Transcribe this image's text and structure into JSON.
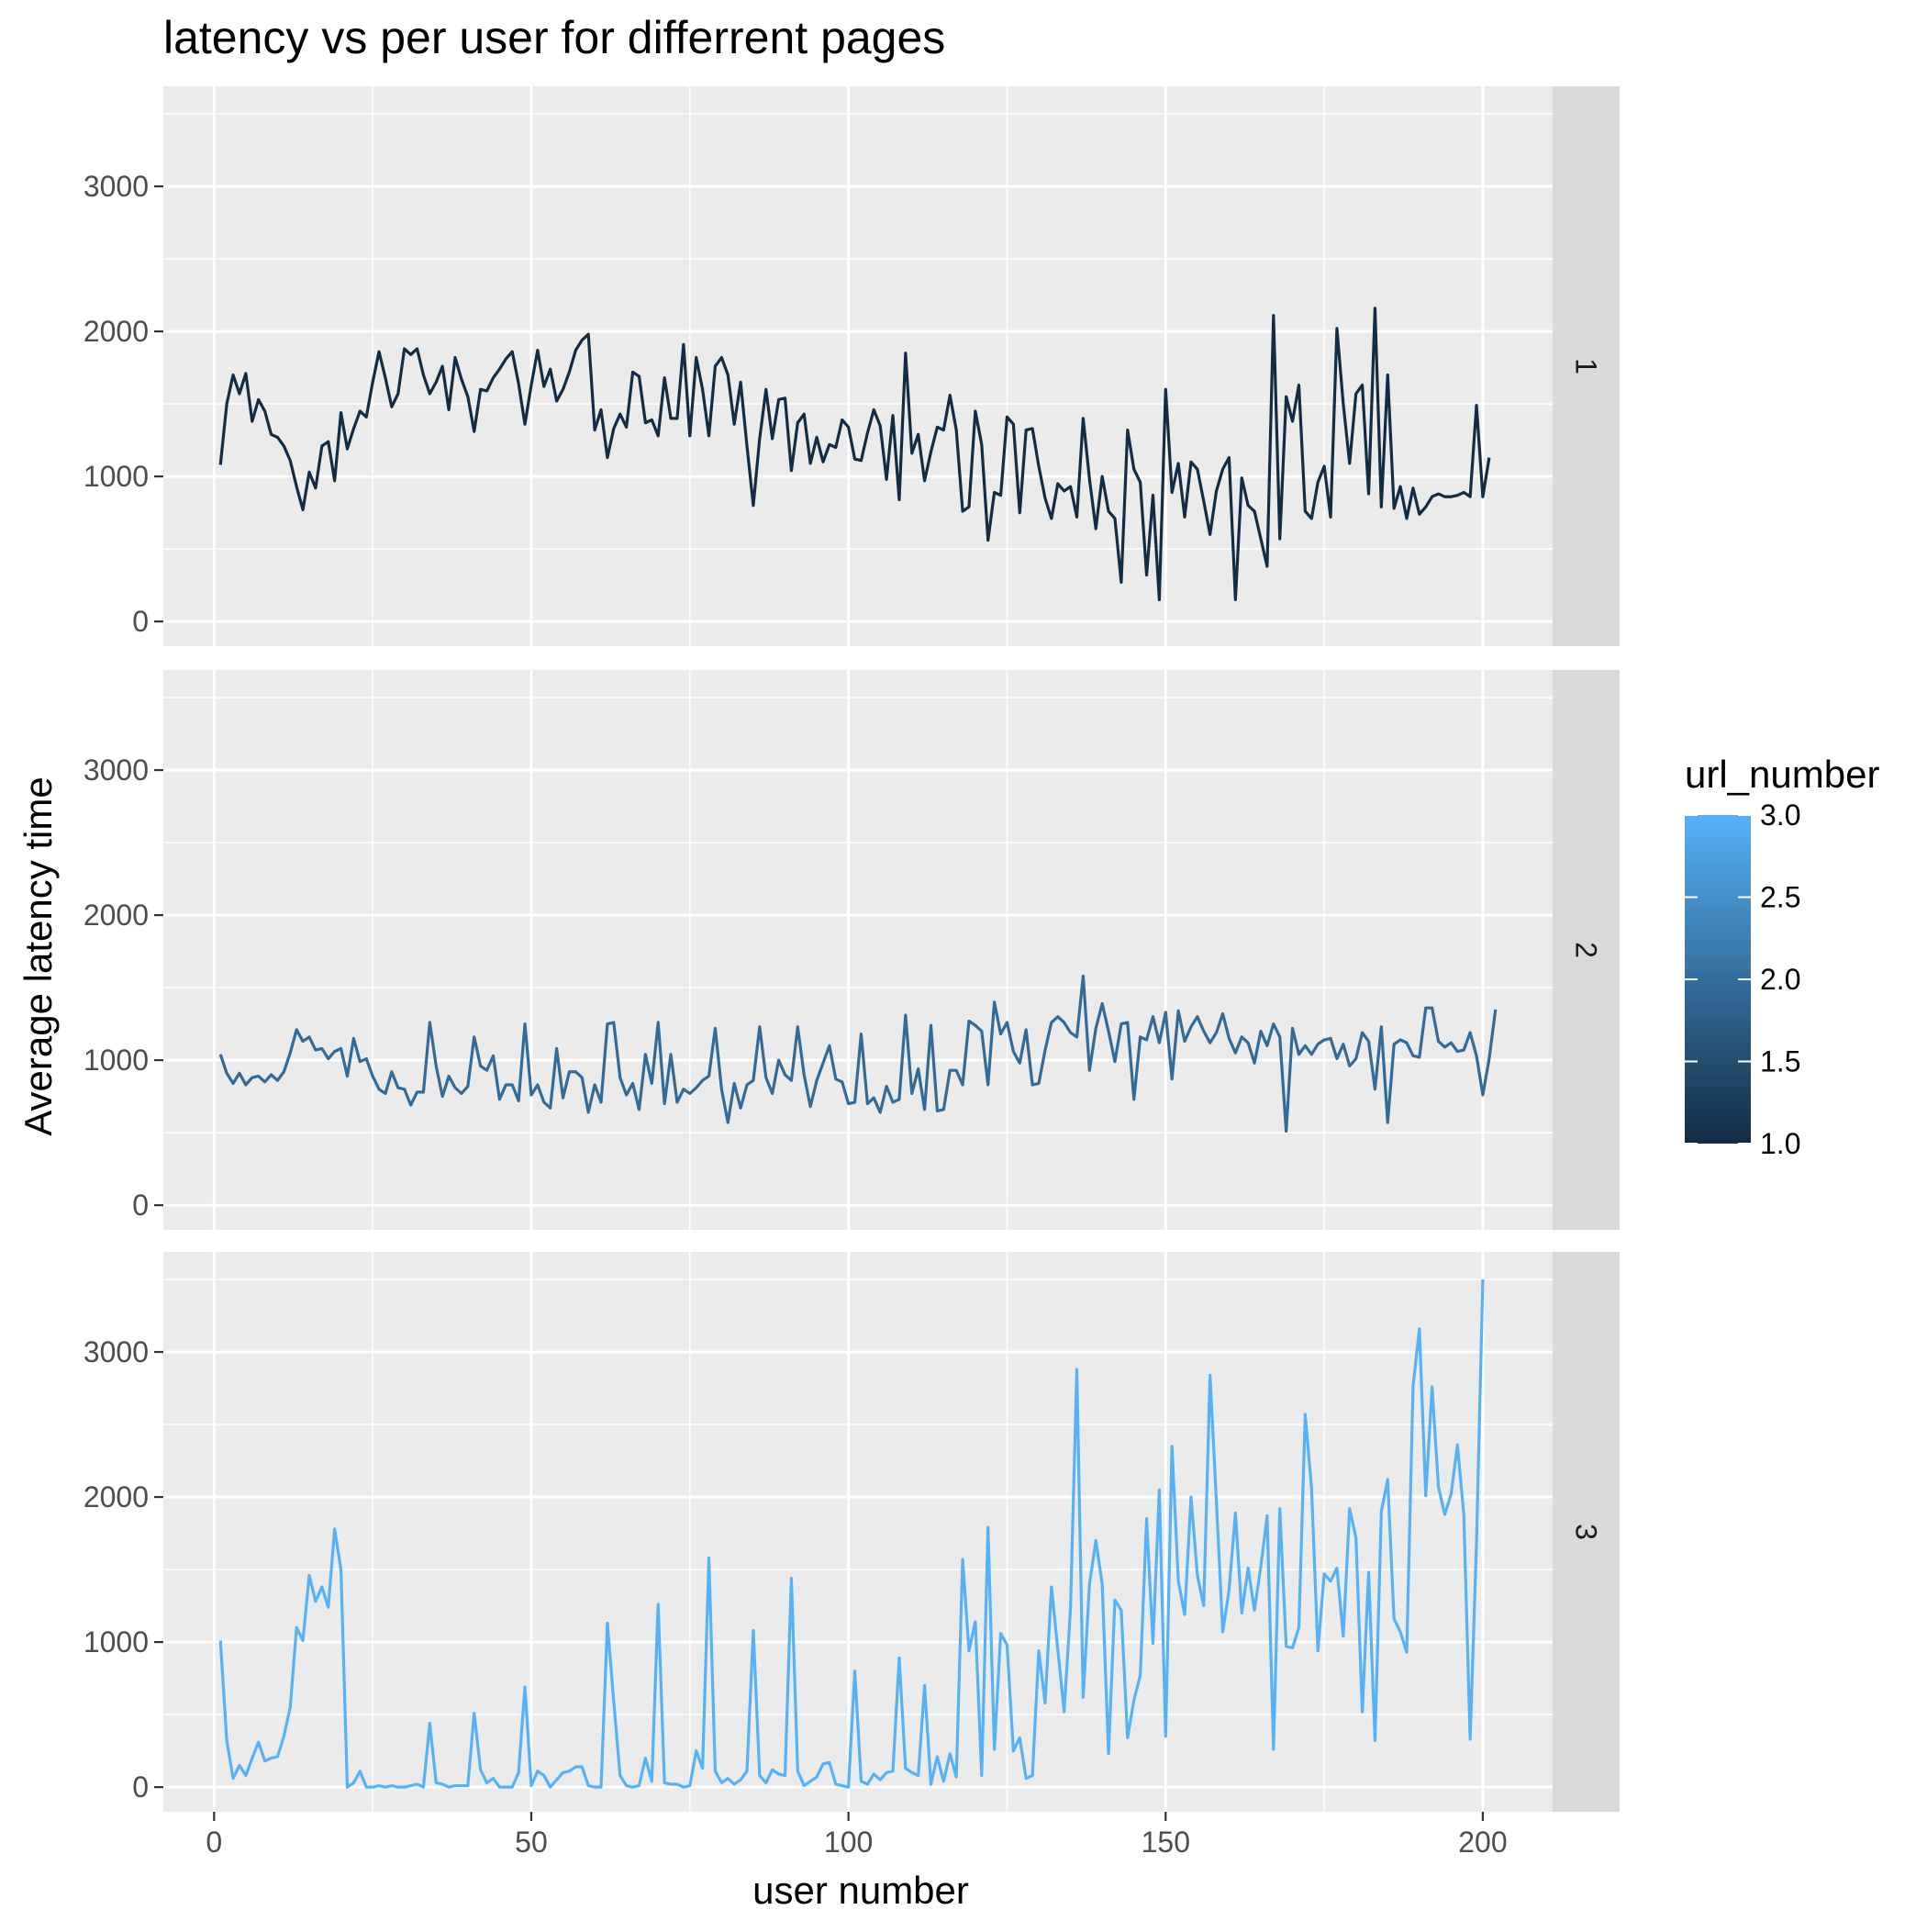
{
  "chart_data": {
    "type": "line",
    "title": "latency vs per user for differrent pages",
    "xlabel": "user number",
    "ylabel": "Average latency time",
    "xlim": [
      -8,
      211
    ],
    "ylim": [
      -170,
      3690
    ],
    "x_ticks": [
      0,
      50,
      100,
      150,
      200
    ],
    "x_tick_labels": [
      "0",
      "50",
      "100",
      "150",
      "200"
    ],
    "y_ticks": [
      0,
      1000,
      2000,
      3000
    ],
    "y_tick_labels": [
      "0",
      "1000",
      "2000",
      "3000"
    ],
    "grid": true,
    "facets": [
      {
        "label": "1",
        "url_number": 1.0,
        "color": "#132B43"
      },
      {
        "label": "2",
        "url_number": 2.0,
        "color": "#336A98"
      },
      {
        "label": "3",
        "url_number": 3.0,
        "color": "#56B1F7"
      }
    ],
    "legend": {
      "title": "url_number",
      "position": "right",
      "min": 1.0,
      "max": 3.0,
      "low_color": "#132B43",
      "high_color": "#56B1F7",
      "ticks": [
        1.0,
        1.5,
        2.0,
        2.5,
        3.0
      ],
      "tick_labels": [
        "1.0",
        "1.5",
        "2.0",
        "2.5",
        "3.0"
      ]
    },
    "series": [
      {
        "name": "1",
        "values": [
          1080,
          1500,
          1700,
          1570,
          1710,
          1380,
          1530,
          1450,
          1290,
          1270,
          1210,
          1110,
          930,
          770,
          1030,
          920,
          1210,
          1240,
          970,
          1440,
          1190,
          1330,
          1450,
          1410,
          1650,
          1860,
          1680,
          1480,
          1570,
          1880,
          1840,
          1880,
          1700,
          1570,
          1650,
          1760,
          1460,
          1820,
          1670,
          1550,
          1310,
          1600,
          1590,
          1680,
          1740,
          1810,
          1860,
          1640,
          1360,
          1630,
          1870,
          1620,
          1740,
          1520,
          1600,
          1720,
          1870,
          1940,
          1980,
          1320,
          1460,
          1130,
          1330,
          1430,
          1340,
          1720,
          1690,
          1370,
          1390,
          1280,
          1680,
          1400,
          1400,
          1910,
          1280,
          1820,
          1600,
          1280,
          1760,
          1820,
          1700,
          1360,
          1650,
          1210,
          800,
          1260,
          1600,
          1260,
          1530,
          1540,
          1040,
          1370,
          1430,
          1090,
          1270,
          1100,
          1220,
          1200,
          1390,
          1340,
          1120,
          1110,
          1300,
          1460,
          1350,
          980,
          1420,
          840,
          1850,
          1160,
          1290,
          970,
          1170,
          1340,
          1320,
          1560,
          1320,
          760,
          790,
          1450,
          1220,
          560,
          890,
          870,
          1410,
          1360,
          750,
          1320,
          1330,
          1070,
          850,
          710,
          950,
          900,
          930,
          720,
          1400,
          980,
          640,
          1000,
          760,
          710,
          270,
          1320,
          1050,
          960,
          320,
          870,
          150,
          1600,
          890,
          1090,
          720,
          1100,
          1050,
          830,
          600,
          900,
          1050,
          1130,
          150,
          990,
          800,
          760,
          570,
          380,
          2110,
          570,
          1550,
          1380,
          1630,
          760,
          710,
          960,
          1070,
          720,
          2020,
          1500,
          1090,
          1570,
          1630,
          880,
          2160,
          790,
          1700,
          780,
          930,
          710,
          920,
          740,
          790,
          860,
          880,
          860,
          860,
          870,
          890,
          860,
          1490,
          860,
          1130
        ]
      },
      {
        "name": "2",
        "values": [
          1040,
          910,
          840,
          910,
          830,
          880,
          890,
          850,
          900,
          860,
          920,
          1050,
          1210,
          1130,
          1160,
          1070,
          1080,
          1010,
          1060,
          1080,
          890,
          1150,
          990,
          1010,
          890,
          800,
          770,
          920,
          810,
          800,
          690,
          780,
          780,
          1260,
          960,
          750,
          890,
          810,
          770,
          820,
          1160,
          960,
          930,
          1030,
          730,
          830,
          830,
          720,
          1250,
          760,
          830,
          710,
          670,
          1080,
          740,
          920,
          920,
          880,
          640,
          830,
          710,
          1250,
          1260,
          880,
          760,
          840,
          660,
          1040,
          840,
          1260,
          700,
          1040,
          710,
          800,
          770,
          810,
          860,
          890,
          1220,
          800,
          570,
          840,
          670,
          830,
          860,
          1230,
          880,
          770,
          1000,
          900,
          860,
          1230,
          900,
          680,
          860,
          980,
          1100,
          870,
          850,
          700,
          710,
          1180,
          700,
          740,
          640,
          820,
          710,
          730,
          1310,
          770,
          940,
          660,
          1240,
          650,
          660,
          930,
          930,
          830,
          1270,
          1240,
          1200,
          830,
          1400,
          1180,
          1260,
          1060,
          980,
          1210,
          830,
          840,
          1070,
          1260,
          1300,
          1260,
          1190,
          1160,
          1580,
          930,
          1220,
          1390,
          1200,
          990,
          1250,
          1260,
          730,
          1160,
          1140,
          1300,
          1120,
          1330,
          870,
          1340,
          1130,
          1230,
          1300,
          1200,
          1120,
          1190,
          1320,
          1150,
          1050,
          1160,
          1120,
          980,
          1200,
          1100,
          1250,
          1160,
          510,
          1220,
          1040,
          1100,
          1040,
          1110,
          1140,
          1150,
          1010,
          1110,
          960,
          1010,
          1190,
          1130,
          800,
          1230,
          570,
          1110,
          1140,
          1120,
          1030,
          1020,
          1360,
          1360,
          1130,
          1090,
          1120,
          1060,
          1070,
          1190,
          1030,
          760,
          1010,
          1350
        ]
      },
      {
        "name": "3",
        "values": [
          1010,
          320,
          60,
          150,
          80,
          200,
          310,
          180,
          200,
          210,
          350,
          550,
          1100,
          1010,
          1460,
          1280,
          1380,
          1240,
          1780,
          1500,
          0,
          30,
          110,
          0,
          0,
          10,
          0,
          10,
          0,
          0,
          10,
          20,
          0,
          440,
          30,
          20,
          0,
          10,
          10,
          10,
          510,
          120,
          30,
          60,
          0,
          0,
          0,
          100,
          690,
          10,
          110,
          80,
          0,
          50,
          100,
          110,
          140,
          140,
          10,
          0,
          0,
          1130,
          590,
          80,
          10,
          0,
          10,
          200,
          40,
          1260,
          30,
          20,
          20,
          0,
          10,
          250,
          130,
          1580,
          110,
          30,
          60,
          20,
          50,
          110,
          1080,
          80,
          30,
          120,
          90,
          80,
          1440,
          110,
          10,
          40,
          70,
          160,
          170,
          20,
          10,
          0,
          800,
          40,
          20,
          90,
          50,
          100,
          110,
          890,
          130,
          100,
          80,
          700,
          20,
          210,
          40,
          230,
          70,
          1570,
          940,
          1140,
          80,
          1790,
          260,
          1060,
          980,
          250,
          340,
          60,
          80,
          940,
          580,
          1380,
          950,
          520,
          1230,
          2880,
          620,
          1400,
          1700,
          1400,
          230,
          1290,
          1220,
          340,
          600,
          770,
          1850,
          990,
          2050,
          350,
          2350,
          1420,
          1190,
          2000,
          1460,
          1250,
          2840,
          1970,
          1070,
          1360,
          1890,
          1200,
          1510,
          1220,
          1520,
          1870,
          260,
          1920,
          970,
          960,
          1100,
          2570,
          2060,
          940,
          1470,
          1420,
          1510,
          1040,
          1920,
          1720,
          520,
          1480,
          320,
          1900,
          2120,
          1160,
          1070,
          930,
          2760,
          3160,
          2010,
          2760,
          2070,
          1880,
          2020,
          2360,
          1880,
          330,
          1680,
          3500
        ]
      }
    ]
  }
}
